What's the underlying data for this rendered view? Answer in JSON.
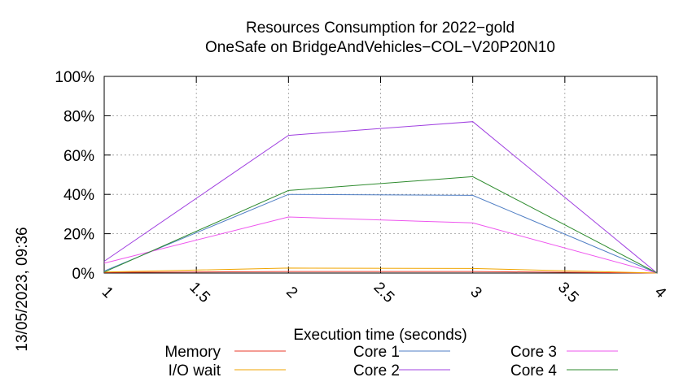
{
  "side_label": "13/05/2023, 09:36",
  "chart_data": {
    "type": "line",
    "title": [
      "Resources Consumption for 2022−gold",
      "OneSafe on BridgeAndVehicles−COL−V20P20N10"
    ],
    "xlabel": "Execution time (seconds)",
    "ylabel": "",
    "xlim": [
      1,
      4
    ],
    "ylim": [
      0,
      100
    ],
    "x_ticks": [
      "1",
      "1.5",
      "2",
      "2.5",
      "3",
      "3.5",
      "4"
    ],
    "y_ticks": [
      "0%",
      "20%",
      "40%",
      "60%",
      "80%",
      "100%"
    ],
    "grid": true,
    "legend_position": "bottom",
    "x": [
      1,
      2,
      3,
      4
    ],
    "series": [
      {
        "name": "Memory",
        "color": "#e8392a",
        "values": [
          0.3,
          0.8,
          0.8,
          0
        ]
      },
      {
        "name": "I/O wait",
        "color": "#f0a500",
        "values": [
          0.5,
          2.5,
          2.3,
          0
        ]
      },
      {
        "name": "Core 1",
        "color": "#4f7ec4",
        "values": [
          1,
          40,
          39.5,
          0
        ]
      },
      {
        "name": "Core 2",
        "color": "#a040e0",
        "values": [
          6,
          70,
          77,
          0
        ]
      },
      {
        "name": "Core 3",
        "color": "#ee55ee",
        "values": [
          5,
          28.5,
          25.5,
          0
        ]
      },
      {
        "name": "Core 4",
        "color": "#2e8b2e",
        "values": [
          0.5,
          42,
          49,
          0
        ]
      }
    ]
  }
}
